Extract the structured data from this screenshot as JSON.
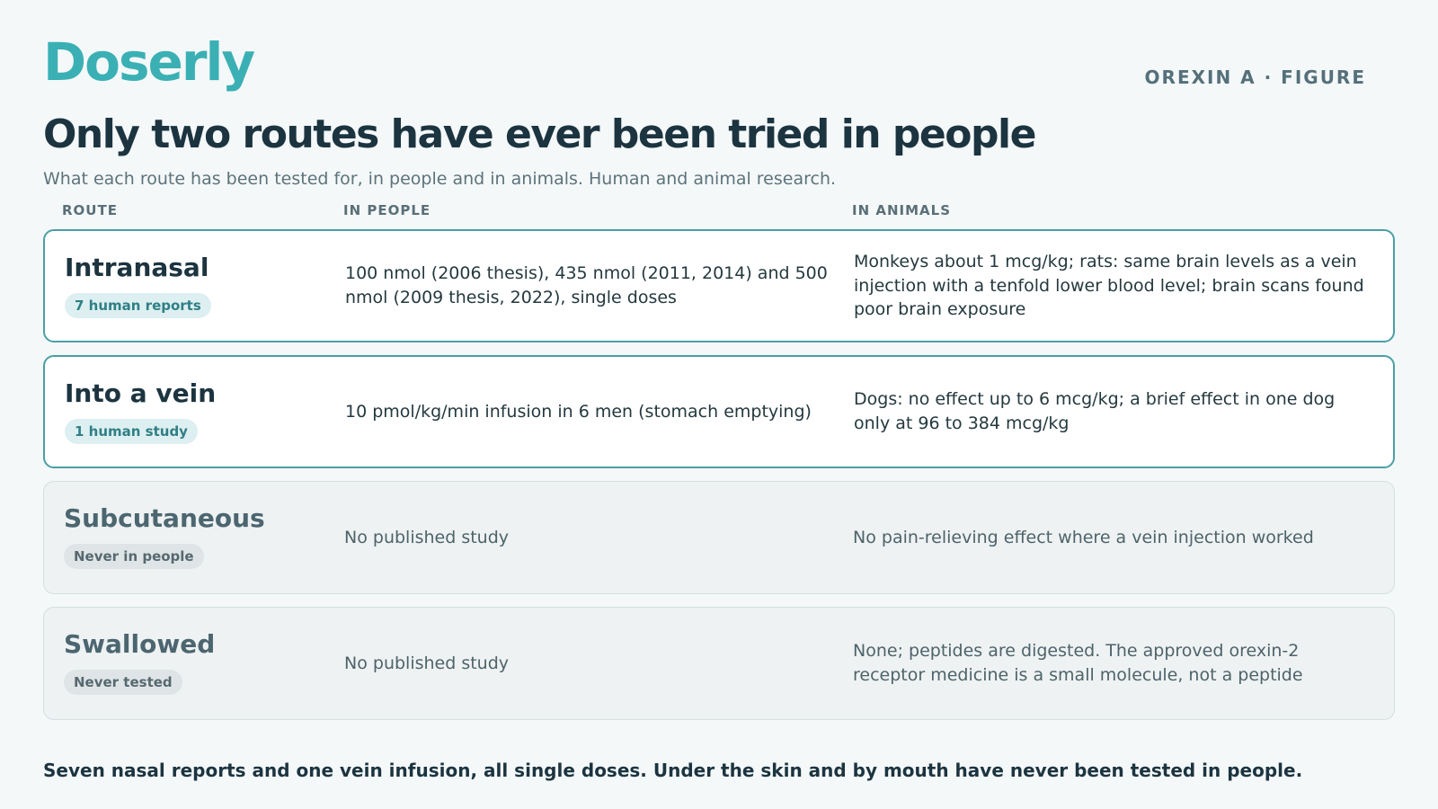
{
  "brand": "Doserly",
  "figure_tag": "OREXIN A · FIGURE",
  "title": "Only two routes have ever been tried in people",
  "subtitle": "What each route has been tested for, in people and in animals. Human and animal research.",
  "columns": {
    "route": "ROUTE",
    "people": "IN PEOPLE",
    "animals": "IN ANIMALS"
  },
  "rows": [
    {
      "route": "Intranasal",
      "badge": "7 human reports",
      "people": "100 nmol (2006 thesis), 435 nmol (2011, 2014) and 500 nmol (2009 thesis, 2022), single doses",
      "animals": "Monkeys about 1 mcg/kg; rats: same brain levels as a vein injection with a tenfold lower blood level; brain scans found poor brain exposure"
    },
    {
      "route": "Into a vein",
      "badge": "1 human study",
      "people": "10 pmol/kg/min infusion in 6 men (stomach emptying)",
      "animals": "Dogs: no effect up to 6 mcg/kg; a brief effect in one dog only at 96 to 384 mcg/kg"
    },
    {
      "route": "Subcutaneous",
      "badge": "Never in people",
      "people": "No published study",
      "animals": "No pain-relieving effect where a vein injection worked"
    },
    {
      "route": "Swallowed",
      "badge": "Never tested",
      "people": "No published study",
      "animals": "None; peptides are digested. The approved orexin-2 receptor medicine is a small molecule, not a peptide"
    }
  ],
  "footer": "Seven nasal reports and one vein infusion, all single doses. Under the skin and by mouth have never been tested in people.",
  "colors": {
    "brand": "#3bb0b4",
    "tested_border": "#4a9fa6",
    "untested_background": "#eef2f3"
  }
}
